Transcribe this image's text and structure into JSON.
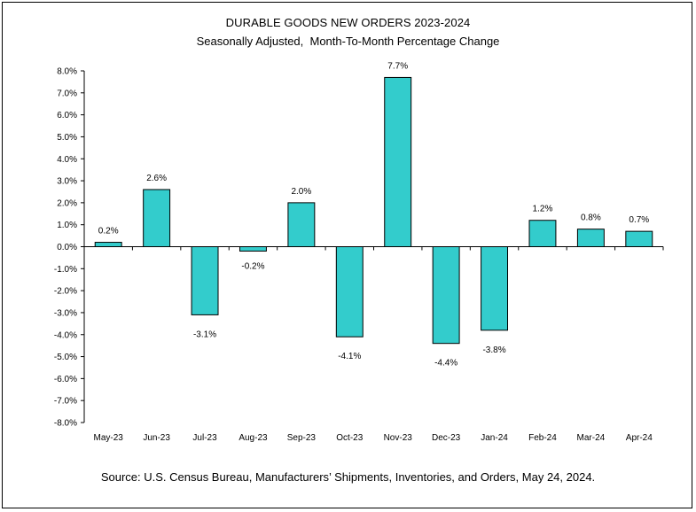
{
  "chart_data": {
    "type": "bar",
    "title": "DURABLE GOODS NEW ORDERS 2023-2024",
    "subtitle": "Seasonally Adjusted,  Month-To-Month Percentage Change",
    "source": "Source: U.S. Census Bureau, Manufacturers’ Shipments, Inventories, and Orders, May 24, 2024.",
    "categories": [
      "May-23",
      "Jun-23",
      "Jul-23",
      "Aug-23",
      "Sep-23",
      "Oct-23",
      "Nov-23",
      "Dec-23",
      "Jan-24",
      "Feb-24",
      "Mar-24",
      "Apr-24"
    ],
    "values": [
      0.2,
      2.6,
      -3.1,
      -0.2,
      2.0,
      -4.1,
      7.7,
      -4.4,
      -3.8,
      1.2,
      0.8,
      0.7
    ],
    "data_labels": [
      "0.2%",
      "2.6%",
      "-3.1%",
      "-0.2%",
      "2.0%",
      "-4.1%",
      "7.7%",
      "-4.4%",
      "-3.8%",
      "1.2%",
      "0.8%",
      "0.7%"
    ],
    "ylim": [
      -8,
      8
    ],
    "yticks": [
      8,
      7,
      6,
      5,
      4,
      3,
      2,
      1,
      0,
      -1,
      -2,
      -3,
      -4,
      -5,
      -6,
      -7,
      -8
    ],
    "ytick_labels": [
      "8.0%",
      "7.0%",
      "6.0%",
      "5.0%",
      "4.0%",
      "3.0%",
      "2.0%",
      "1.0%",
      "0.0%",
      "-1.0%",
      "-2.0%",
      "-3.0%",
      "-4.0%",
      "-5.0%",
      "-6.0%",
      "-7.0%",
      "-8.0%"
    ],
    "grid": false,
    "legend": "none",
    "bar_color": "#33cccc"
  }
}
